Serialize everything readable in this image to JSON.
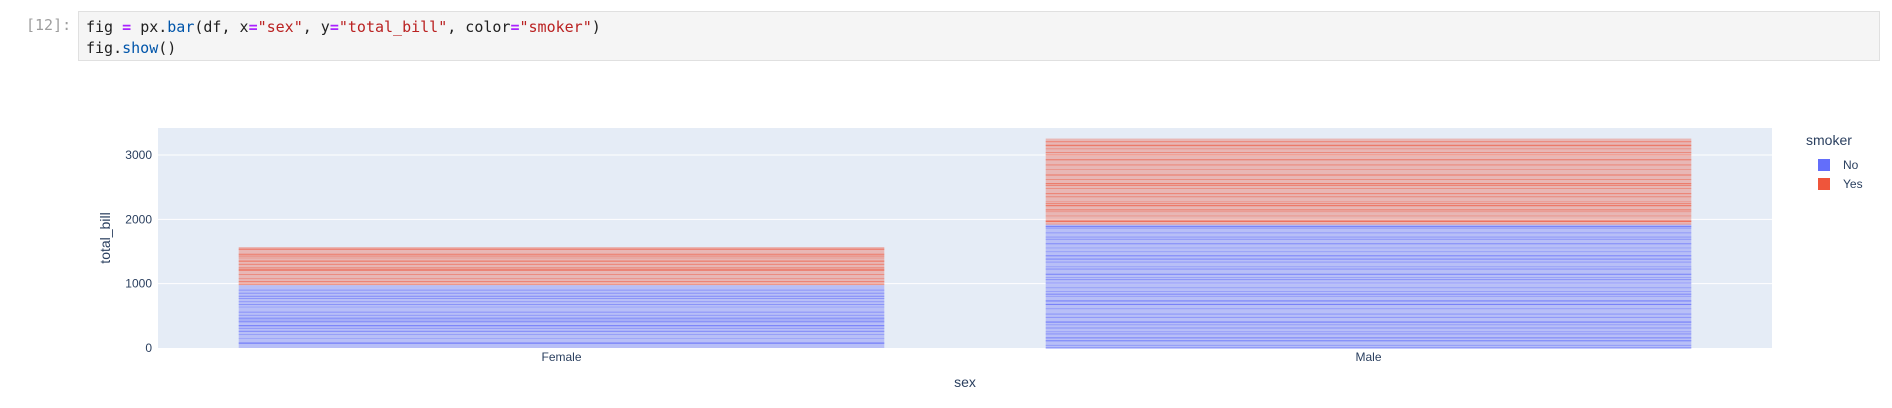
{
  "cell": {
    "prompt": "[12]:",
    "line1": {
      "var": "fig",
      "eq": " = ",
      "mod": "px.",
      "fn": "bar",
      "open": "(df, x",
      "eq2": "=",
      "str_x": "\"sex\"",
      "mid": ", y",
      "eq3": "=",
      "str_y": "\"total_bill\"",
      "mid2": ", color",
      "eq4": "=",
      "str_c": "\"smoker\"",
      "close": ")"
    },
    "line2": {
      "obj": "fig.",
      "fn": "show",
      "call": "()"
    }
  },
  "chart_data": {
    "type": "bar",
    "barmode": "stack",
    "categories": [
      "Female",
      "Male"
    ],
    "series": [
      {
        "name": "No",
        "values": [
          977,
          1919
        ],
        "color": "#636efa"
      },
      {
        "name": "Yes",
        "values": [
          593,
          1337
        ],
        "color": "#ef553b"
      }
    ],
    "xlabel": "sex",
    "ylabel": "total_bill",
    "ylim": [
      0,
      3420
    ],
    "yticks": [
      0,
      1000,
      2000,
      3000
    ],
    "legend": {
      "title": "smoker",
      "placement": "top-right"
    },
    "grid": true
  }
}
